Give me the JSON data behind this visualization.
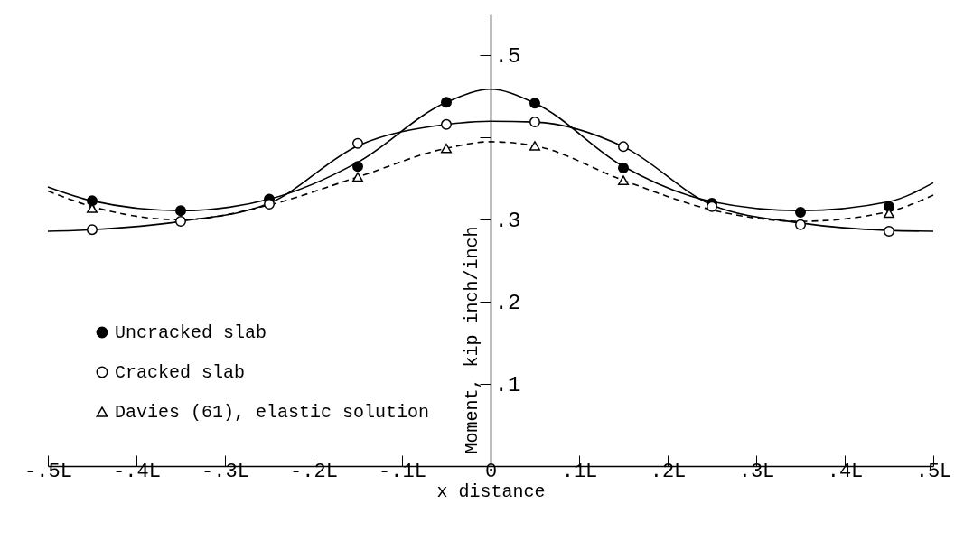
{
  "chart_data": {
    "type": "line",
    "xlabel": "x distance",
    "ylabel": "Moment, kip inch/inch",
    "xlim": [
      -0.5,
      0.5
    ],
    "ylim": [
      0,
      0.55
    ],
    "xticks": [
      {
        "value": -0.5,
        "label": "-.5L"
      },
      {
        "value": -0.4,
        "label": "-.4L"
      },
      {
        "value": -0.3,
        "label": "-.3L"
      },
      {
        "value": -0.2,
        "label": "-.2L"
      },
      {
        "value": -0.1,
        "label": "-.1L"
      },
      0,
      {
        "value": 0.1,
        "label": ".1L"
      },
      {
        "value": 0.2,
        "label": ".2L"
      },
      {
        "value": 0.3,
        "label": ".3L"
      },
      {
        "value": 0.4,
        "label": ".4L"
      },
      {
        "value": 0.5,
        "label": ".5L"
      }
    ],
    "yticks": [
      {
        "value": 0.1,
        "label": ".1"
      },
      {
        "value": 0.2,
        "label": ".2"
      },
      {
        "value": 0.3,
        "label": ".3"
      },
      {
        "value": 0.4,
        "label": null
      },
      {
        "value": 0.5,
        "label": ".5"
      }
    ],
    "grid": false,
    "legend": "bottom left",
    "series": [
      {
        "name": "Uncracked slab",
        "type": "scatter",
        "marker": "circle",
        "color": "#000000",
        "x": [
          -0.45,
          -0.35,
          -0.25,
          -0.15,
          -0.05,
          0.05,
          0.15,
          0.25,
          0.35,
          0.45
        ],
        "values": [
          0.323,
          0.311,
          0.325,
          0.365,
          0.443,
          0.442,
          0.363,
          0.32,
          0.309,
          0.316
        ]
      },
      {
        "name": "Cracked slab",
        "type": "scatter",
        "marker": "circle",
        "color": "#ffffff",
        "x": [
          -0.45,
          -0.35,
          -0.25,
          -0.15,
          -0.05,
          0.05,
          0.15,
          0.25,
          0.35,
          0.45
        ],
        "values": [
          0.288,
          0.298,
          0.319,
          0.393,
          0.416,
          0.419,
          0.389,
          0.316,
          0.294,
          0.286
        ]
      },
      {
        "name": "Davies (61), elastic solution",
        "type": "scatter",
        "marker": "triangle",
        "color": "#ffffff",
        "x": [
          -0.45,
          -0.15,
          -0.05,
          0.05,
          0.15,
          0.45
        ],
        "values": [
          0.314,
          0.352,
          0.387,
          0.39,
          0.348,
          0.308
        ]
      },
      {
        "line_style": "solid",
        "color": "#000000",
        "x": [
          -0.5,
          -0.45,
          -0.35,
          -0.25,
          -0.15,
          -0.05,
          0,
          0.05,
          0.15,
          0.25,
          0.35,
          0.45,
          0.5
        ],
        "values": [
          0.34,
          0.323,
          0.311,
          0.325,
          0.37,
          0.443,
          0.459,
          0.442,
          0.365,
          0.322,
          0.311,
          0.322,
          0.345
        ]
      },
      {
        "line_style": "solid",
        "color": "#000000",
        "x": [
          -0.5,
          -0.45,
          -0.35,
          -0.25,
          -0.15,
          -0.05,
          0,
          0.05,
          0.15,
          0.25,
          0.35,
          0.45,
          0.5
        ],
        "values": [
          0.286,
          0.288,
          0.298,
          0.32,
          0.39,
          0.416,
          0.42,
          0.419,
          0.389,
          0.318,
          0.296,
          0.287,
          0.286
        ]
      },
      {
        "line_style": "dashed",
        "color": "#000000",
        "x": [
          -0.5,
          -0.45,
          -0.35,
          -0.25,
          -0.15,
          -0.05,
          0,
          0.05,
          0.15,
          0.25,
          0.35,
          0.45,
          0.5
        ],
        "values": [
          0.335,
          0.316,
          0.3,
          0.318,
          0.352,
          0.387,
          0.395,
          0.39,
          0.348,
          0.312,
          0.298,
          0.31,
          0.33
        ]
      }
    ]
  }
}
